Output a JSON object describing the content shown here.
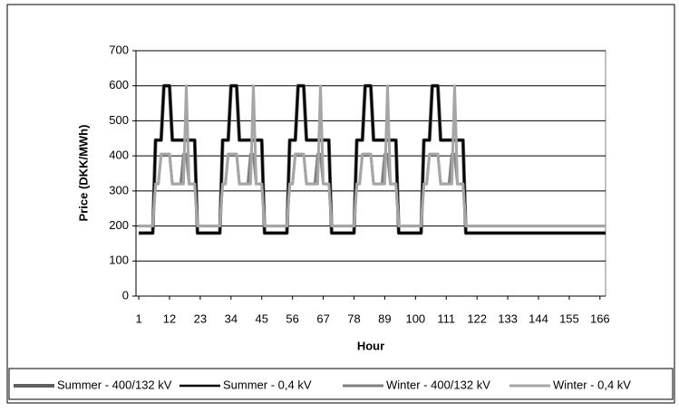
{
  "chart_data": {
    "type": "line",
    "y_label": "Price (DKK/MWh)",
    "x_label": "Hour",
    "x": [
      1,
      2,
      3,
      4,
      5,
      6,
      7,
      8,
      9,
      10,
      11,
      12,
      13,
      14,
      15,
      16,
      17,
      18,
      19,
      20,
      21,
      22,
      23,
      24,
      25,
      26,
      27,
      28,
      29,
      30,
      31,
      32,
      33,
      34,
      35,
      36,
      37,
      38,
      39,
      40,
      41,
      42,
      43,
      44,
      45,
      46,
      47,
      48,
      49,
      50,
      51,
      52,
      53,
      54,
      55,
      56,
      57,
      58,
      59,
      60,
      61,
      62,
      63,
      64,
      65,
      66,
      67,
      68,
      69,
      70,
      71,
      72,
      73,
      74,
      75,
      76,
      77,
      78,
      79,
      80,
      81,
      82,
      83,
      84,
      85,
      86,
      87,
      88,
      89,
      90,
      91,
      92,
      93,
      94,
      95,
      96,
      97,
      98,
      99,
      100,
      101,
      102,
      103,
      104,
      105,
      106,
      107,
      108,
      109,
      110,
      111,
      112,
      113,
      114,
      115,
      116,
      117,
      118,
      119,
      120,
      121,
      122,
      123,
      124,
      125,
      126,
      127,
      128,
      129,
      130,
      131,
      132,
      133,
      134,
      135,
      136,
      137,
      138,
      139,
      140,
      141,
      142,
      143,
      144,
      145,
      146,
      147,
      148,
      149,
      150,
      151,
      152,
      153,
      154,
      155,
      156,
      157,
      158,
      159,
      160,
      161,
      162,
      163,
      164,
      165,
      166,
      167,
      168
    ],
    "xlim": [
      0,
      168
    ],
    "xticks": [
      1,
      12,
      23,
      34,
      45,
      56,
      67,
      78,
      89,
      100,
      111,
      122,
      133,
      144,
      155,
      166
    ],
    "ylim": [
      0,
      700
    ],
    "yticks": [
      0,
      100,
      200,
      300,
      400,
      500,
      600,
      700
    ],
    "grid": true,
    "legend": "bottom",
    "series": [
      {
        "name": "Summer - 400/132 kV",
        "color": "#5f5f5f",
        "values": [
          180,
          180,
          180,
          180,
          180,
          180,
          445,
          445,
          445,
          600,
          600,
          600,
          445,
          445,
          445,
          445,
          445,
          445,
          445,
          445,
          445,
          180,
          180,
          180,
          180,
          180,
          180,
          180,
          180,
          180,
          445,
          445,
          445,
          600,
          600,
          600,
          445,
          445,
          445,
          445,
          445,
          445,
          445,
          445,
          445,
          180,
          180,
          180,
          180,
          180,
          180,
          180,
          180,
          180,
          445,
          445,
          445,
          600,
          600,
          600,
          445,
          445,
          445,
          445,
          445,
          445,
          445,
          445,
          445,
          180,
          180,
          180,
          180,
          180,
          180,
          180,
          180,
          180,
          445,
          445,
          445,
          600,
          600,
          600,
          445,
          445,
          445,
          445,
          445,
          445,
          445,
          445,
          445,
          180,
          180,
          180,
          180,
          180,
          180,
          180,
          180,
          180,
          445,
          445,
          445,
          600,
          600,
          600,
          445,
          445,
          445,
          445,
          445,
          445,
          445,
          445,
          445,
          180,
          180,
          180,
          180,
          180,
          180,
          180,
          180,
          180,
          180,
          180,
          180,
          180,
          180,
          180,
          180,
          180,
          180,
          180,
          180,
          180,
          180,
          180,
          180,
          180,
          180,
          180,
          180,
          180,
          180,
          180,
          180,
          180,
          180,
          180,
          180,
          180,
          180,
          180,
          180,
          180,
          180,
          180,
          180,
          180,
          180,
          180,
          180,
          180,
          180,
          180
        ]
      },
      {
        "name": "Summer - 0,4 kV",
        "color": "#000000",
        "values": [
          180,
          180,
          180,
          180,
          180,
          180,
          445,
          445,
          445,
          600,
          600,
          600,
          445,
          445,
          445,
          445,
          445,
          445,
          445,
          445,
          445,
          180,
          180,
          180,
          180,
          180,
          180,
          180,
          180,
          180,
          445,
          445,
          445,
          600,
          600,
          600,
          445,
          445,
          445,
          445,
          445,
          445,
          445,
          445,
          445,
          180,
          180,
          180,
          180,
          180,
          180,
          180,
          180,
          180,
          445,
          445,
          445,
          600,
          600,
          600,
          445,
          445,
          445,
          445,
          445,
          445,
          445,
          445,
          445,
          180,
          180,
          180,
          180,
          180,
          180,
          180,
          180,
          180,
          445,
          445,
          445,
          600,
          600,
          600,
          445,
          445,
          445,
          445,
          445,
          445,
          445,
          445,
          445,
          180,
          180,
          180,
          180,
          180,
          180,
          180,
          180,
          180,
          445,
          445,
          445,
          600,
          600,
          600,
          445,
          445,
          445,
          445,
          445,
          445,
          445,
          445,
          445,
          180,
          180,
          180,
          180,
          180,
          180,
          180,
          180,
          180,
          180,
          180,
          180,
          180,
          180,
          180,
          180,
          180,
          180,
          180,
          180,
          180,
          180,
          180,
          180,
          180,
          180,
          180,
          180,
          180,
          180,
          180,
          180,
          180,
          180,
          180,
          180,
          180,
          180,
          180,
          180,
          180,
          180,
          180,
          180,
          180,
          180,
          180,
          180,
          180,
          180,
          180
        ]
      },
      {
        "name": "Winter - 400/132 kV",
        "color": "#7f7f7f",
        "values": [
          200,
          200,
          200,
          200,
          200,
          200,
          320,
          320,
          405,
          405,
          405,
          405,
          320,
          320,
          320,
          320,
          405,
          405,
          320,
          320,
          320,
          200,
          200,
          200,
          200,
          200,
          200,
          200,
          200,
          200,
          320,
          320,
          405,
          405,
          405,
          405,
          320,
          320,
          320,
          320,
          405,
          405,
          320,
          320,
          320,
          200,
          200,
          200,
          200,
          200,
          200,
          200,
          200,
          200,
          320,
          320,
          405,
          405,
          405,
          405,
          320,
          320,
          320,
          320,
          405,
          405,
          320,
          320,
          320,
          200,
          200,
          200,
          200,
          200,
          200,
          200,
          200,
          200,
          320,
          320,
          405,
          405,
          405,
          405,
          320,
          320,
          320,
          320,
          405,
          405,
          320,
          320,
          320,
          200,
          200,
          200,
          200,
          200,
          200,
          200,
          200,
          200,
          320,
          320,
          405,
          405,
          405,
          405,
          320,
          320,
          320,
          320,
          405,
          405,
          320,
          320,
          320,
          200,
          200,
          200,
          200,
          200,
          200,
          200,
          200,
          200,
          200,
          200,
          200,
          200,
          200,
          200,
          200,
          200,
          200,
          200,
          200,
          200,
          200,
          200,
          200,
          200,
          200,
          200,
          200,
          200,
          200,
          200,
          200,
          200,
          200,
          200,
          200,
          200,
          200,
          200,
          200,
          200,
          200,
          200,
          200,
          200,
          200,
          200,
          200,
          200,
          200,
          200
        ]
      },
      {
        "name": "Winter - 0,4 kV",
        "color": "#a6a6a6",
        "values": [
          200,
          200,
          200,
          200,
          200,
          200,
          320,
          320,
          405,
          405,
          405,
          405,
          320,
          320,
          320,
          320,
          320,
          600,
          320,
          320,
          320,
          200,
          200,
          200,
          200,
          200,
          200,
          200,
          200,
          200,
          320,
          320,
          405,
          405,
          405,
          405,
          320,
          320,
          320,
          320,
          320,
          600,
          320,
          320,
          320,
          200,
          200,
          200,
          200,
          200,
          200,
          200,
          200,
          200,
          320,
          320,
          405,
          405,
          405,
          405,
          320,
          320,
          320,
          320,
          320,
          600,
          320,
          320,
          320,
          200,
          200,
          200,
          200,
          200,
          200,
          200,
          200,
          200,
          320,
          320,
          405,
          405,
          405,
          405,
          320,
          320,
          320,
          320,
          320,
          600,
          320,
          320,
          320,
          200,
          200,
          200,
          200,
          200,
          200,
          200,
          200,
          200,
          320,
          320,
          405,
          405,
          405,
          405,
          320,
          320,
          320,
          320,
          320,
          600,
          320,
          320,
          320,
          200,
          200,
          200,
          200,
          200,
          200,
          200,
          200,
          200,
          200,
          200,
          200,
          200,
          200,
          200,
          200,
          200,
          200,
          200,
          200,
          200,
          200,
          200,
          200,
          200,
          200,
          200,
          200,
          200,
          200,
          200,
          200,
          200,
          200,
          200,
          200,
          200,
          200,
          200,
          200,
          200,
          200,
          200,
          200,
          200,
          200,
          200,
          200,
          200,
          200,
          200
        ]
      }
    ]
  }
}
